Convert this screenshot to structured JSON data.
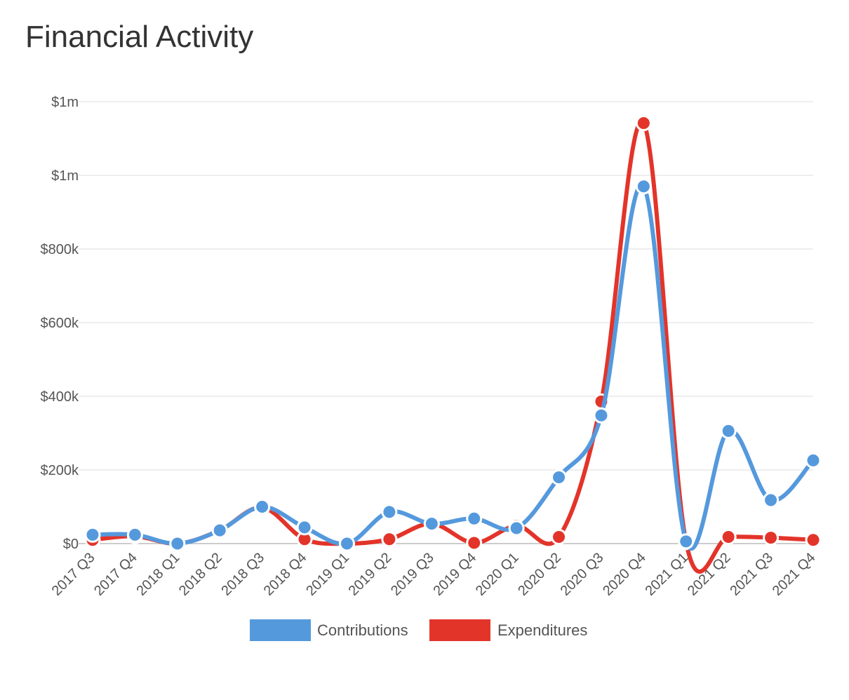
{
  "title": "Financial Activity",
  "chart_data": {
    "type": "line",
    "smooth": true,
    "categories": [
      "2017 Q3",
      "2017 Q4",
      "2018 Q1",
      "2018 Q2",
      "2018 Q3",
      "2018 Q4",
      "2019 Q1",
      "2019 Q2",
      "2019 Q3",
      "2019 Q4",
      "2020 Q1",
      "2020 Q2",
      "2020 Q3",
      "2020 Q4",
      "2021 Q1",
      "2021 Q2",
      "2021 Q3",
      "2021 Q4"
    ],
    "series": [
      {
        "name": "Contributions",
        "color": "#5599dd",
        "values": [
          24000,
          24000,
          0,
          36000,
          100000,
          44000,
          0,
          86000,
          54000,
          68000,
          42000,
          180000,
          348000,
          970000,
          6000,
          306000,
          118000,
          226000
        ]
      },
      {
        "name": "Expenditures",
        "color": "#e3342a",
        "values": [
          10000,
          20000,
          0,
          36000,
          98000,
          12000,
          0,
          12000,
          54000,
          2000,
          48000,
          18000,
          386000,
          1142000,
          4000,
          18000,
          16000,
          10000
        ]
      }
    ],
    "y_ticks": [
      0,
      200000,
      400000,
      600000,
      800000,
      1000000,
      1200000
    ],
    "y_tick_labels": [
      "$0",
      "$200k",
      "$400k",
      "$600k",
      "$800k",
      "$1m",
      "$1m"
    ],
    "ylim": [
      0,
      1200000
    ],
    "grid": true,
    "legend": "bottom-center"
  }
}
